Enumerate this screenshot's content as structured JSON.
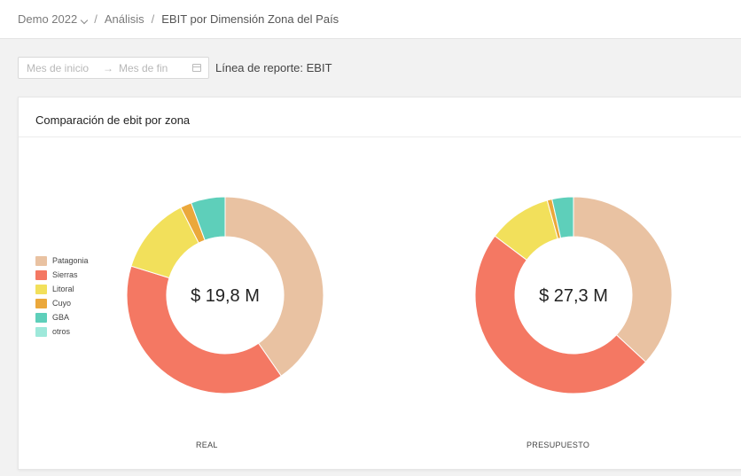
{
  "breadcrumb": {
    "root": "Demo 2022",
    "section": "Análisis",
    "current": "EBIT por Dimensión Zona del País"
  },
  "filters": {
    "date_start_placeholder": "Mes de inicio",
    "date_arrow": "→",
    "date_end_placeholder": "Mes de fin",
    "report_line": "Línea de reporte: EBIT"
  },
  "card": {
    "title": "Comparación de ebit por zona"
  },
  "colors": {
    "Patagonia": "#e9c2a2",
    "Sierras": "#f47863",
    "Litoral": "#f2e05b",
    "Cuyo": "#eba83b",
    "GBA": "#5ecfba",
    "otros": "#9ee8da"
  },
  "chart_data": [
    {
      "type": "pie",
      "title": "REAL",
      "center_label": "$ 19,8 M",
      "legend_position": "left",
      "categories": [
        "Patagonia",
        "Sierras",
        "Litoral",
        "Cuyo",
        "GBA",
        "otros"
      ],
      "values": [
        39.5,
        38.6,
        12.5,
        1.8,
        5.5,
        0
      ]
    },
    {
      "type": "pie",
      "title": "PRESUPUESTO",
      "center_label": "$ 27,3 M",
      "categories": [
        "Patagonia",
        "Sierras",
        "Litoral",
        "Cuyo",
        "GBA",
        "otros"
      ],
      "values": [
        36.8,
        48.3,
        10.4,
        0.8,
        3.5,
        0
      ]
    }
  ]
}
